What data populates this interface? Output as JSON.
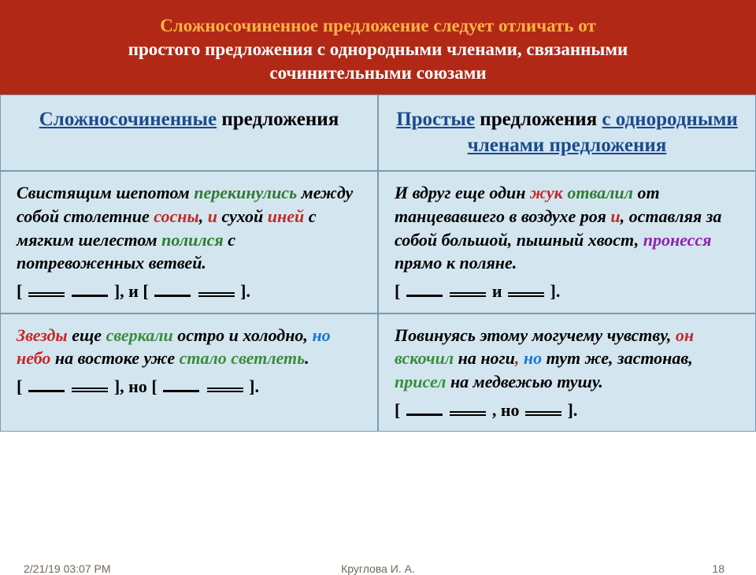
{
  "header": {
    "line1a": "Сложносочиненное предложение следует отличать от",
    "line2": "простого предложения с однородными членами, связанными",
    "line3": "сочинительными союзами"
  },
  "colheads": {
    "left_u": "Сложносочиненные",
    "left_rest": "предложения",
    "right_u1": "Простые",
    "right_mid": " предложения ",
    "right_u2": "с однородными членами предложения"
  },
  "r1c1": {
    "t1": "Свистящим шепотом ",
    "t2": "перекинулись",
    "t3": " между собой столетние ",
    "t4": "сосны",
    "t5": ", ",
    "t6": "и",
    "t7": " сухой ",
    "t8": "иней",
    "t9": " с мягким шелестом ",
    "t10": "полился",
    "t11": " с потревоженных ветвей.",
    "scheme_a": "[ ",
    "scheme_b": " ], и [ ",
    "scheme_c": " ]."
  },
  "r1c2": {
    "t1": "И вдруг еще один ",
    "t2": "жук",
    "t3": " ",
    "t4": "отвалил",
    "t5": " от танцевавшего в воздухе роя ",
    "t6": "и",
    "t7": ", оставляя за собой большой, пышный хвост, ",
    "t8": "пронесся",
    "t9": " прямо к поляне.",
    "scheme_a": "[ ",
    "scheme_b": "  и ",
    "scheme_c": " ]."
  },
  "r2c1": {
    "t1": "Звезды",
    "t2": " еще ",
    "t3": "сверкали",
    "t4": " остро и холодно, ",
    "t5": "но",
    "t6": " ",
    "t7": "небо",
    "t8": " на востоке уже ",
    "t9": "стало светлеть",
    "t10": ".",
    "scheme_a": "[ ",
    "scheme_b": " ], но [ ",
    "scheme_c": " ]."
  },
  "r2c2": {
    "t1": "Повинуясь этому могучему чувству, ",
    "t2": "он",
    "t3": " ",
    "t4": "вскочил",
    "t5": " на ноги",
    "t6": ", ",
    "t7": "но",
    "t8": " тут же, застонав, ",
    "t9": "присел",
    "t10": " на медвежью тушу.",
    "scheme_a": "[ ",
    "scheme_b": " , но ",
    "scheme_c": " ]."
  },
  "footer": {
    "date": "2/21/19 03:07 PM",
    "author": "Круглова И. А.",
    "page": "18"
  },
  "colors": {
    "header_bg": "#b22817",
    "header_accent": "#ffb347",
    "cell_bg": "#d3e5ef",
    "border": "#7a9bb0",
    "link_blue": "#1a4b8c",
    "green": "#2e7d32",
    "red": "#c62828",
    "purple": "#8e24aa",
    "blue": "#1976d2"
  }
}
